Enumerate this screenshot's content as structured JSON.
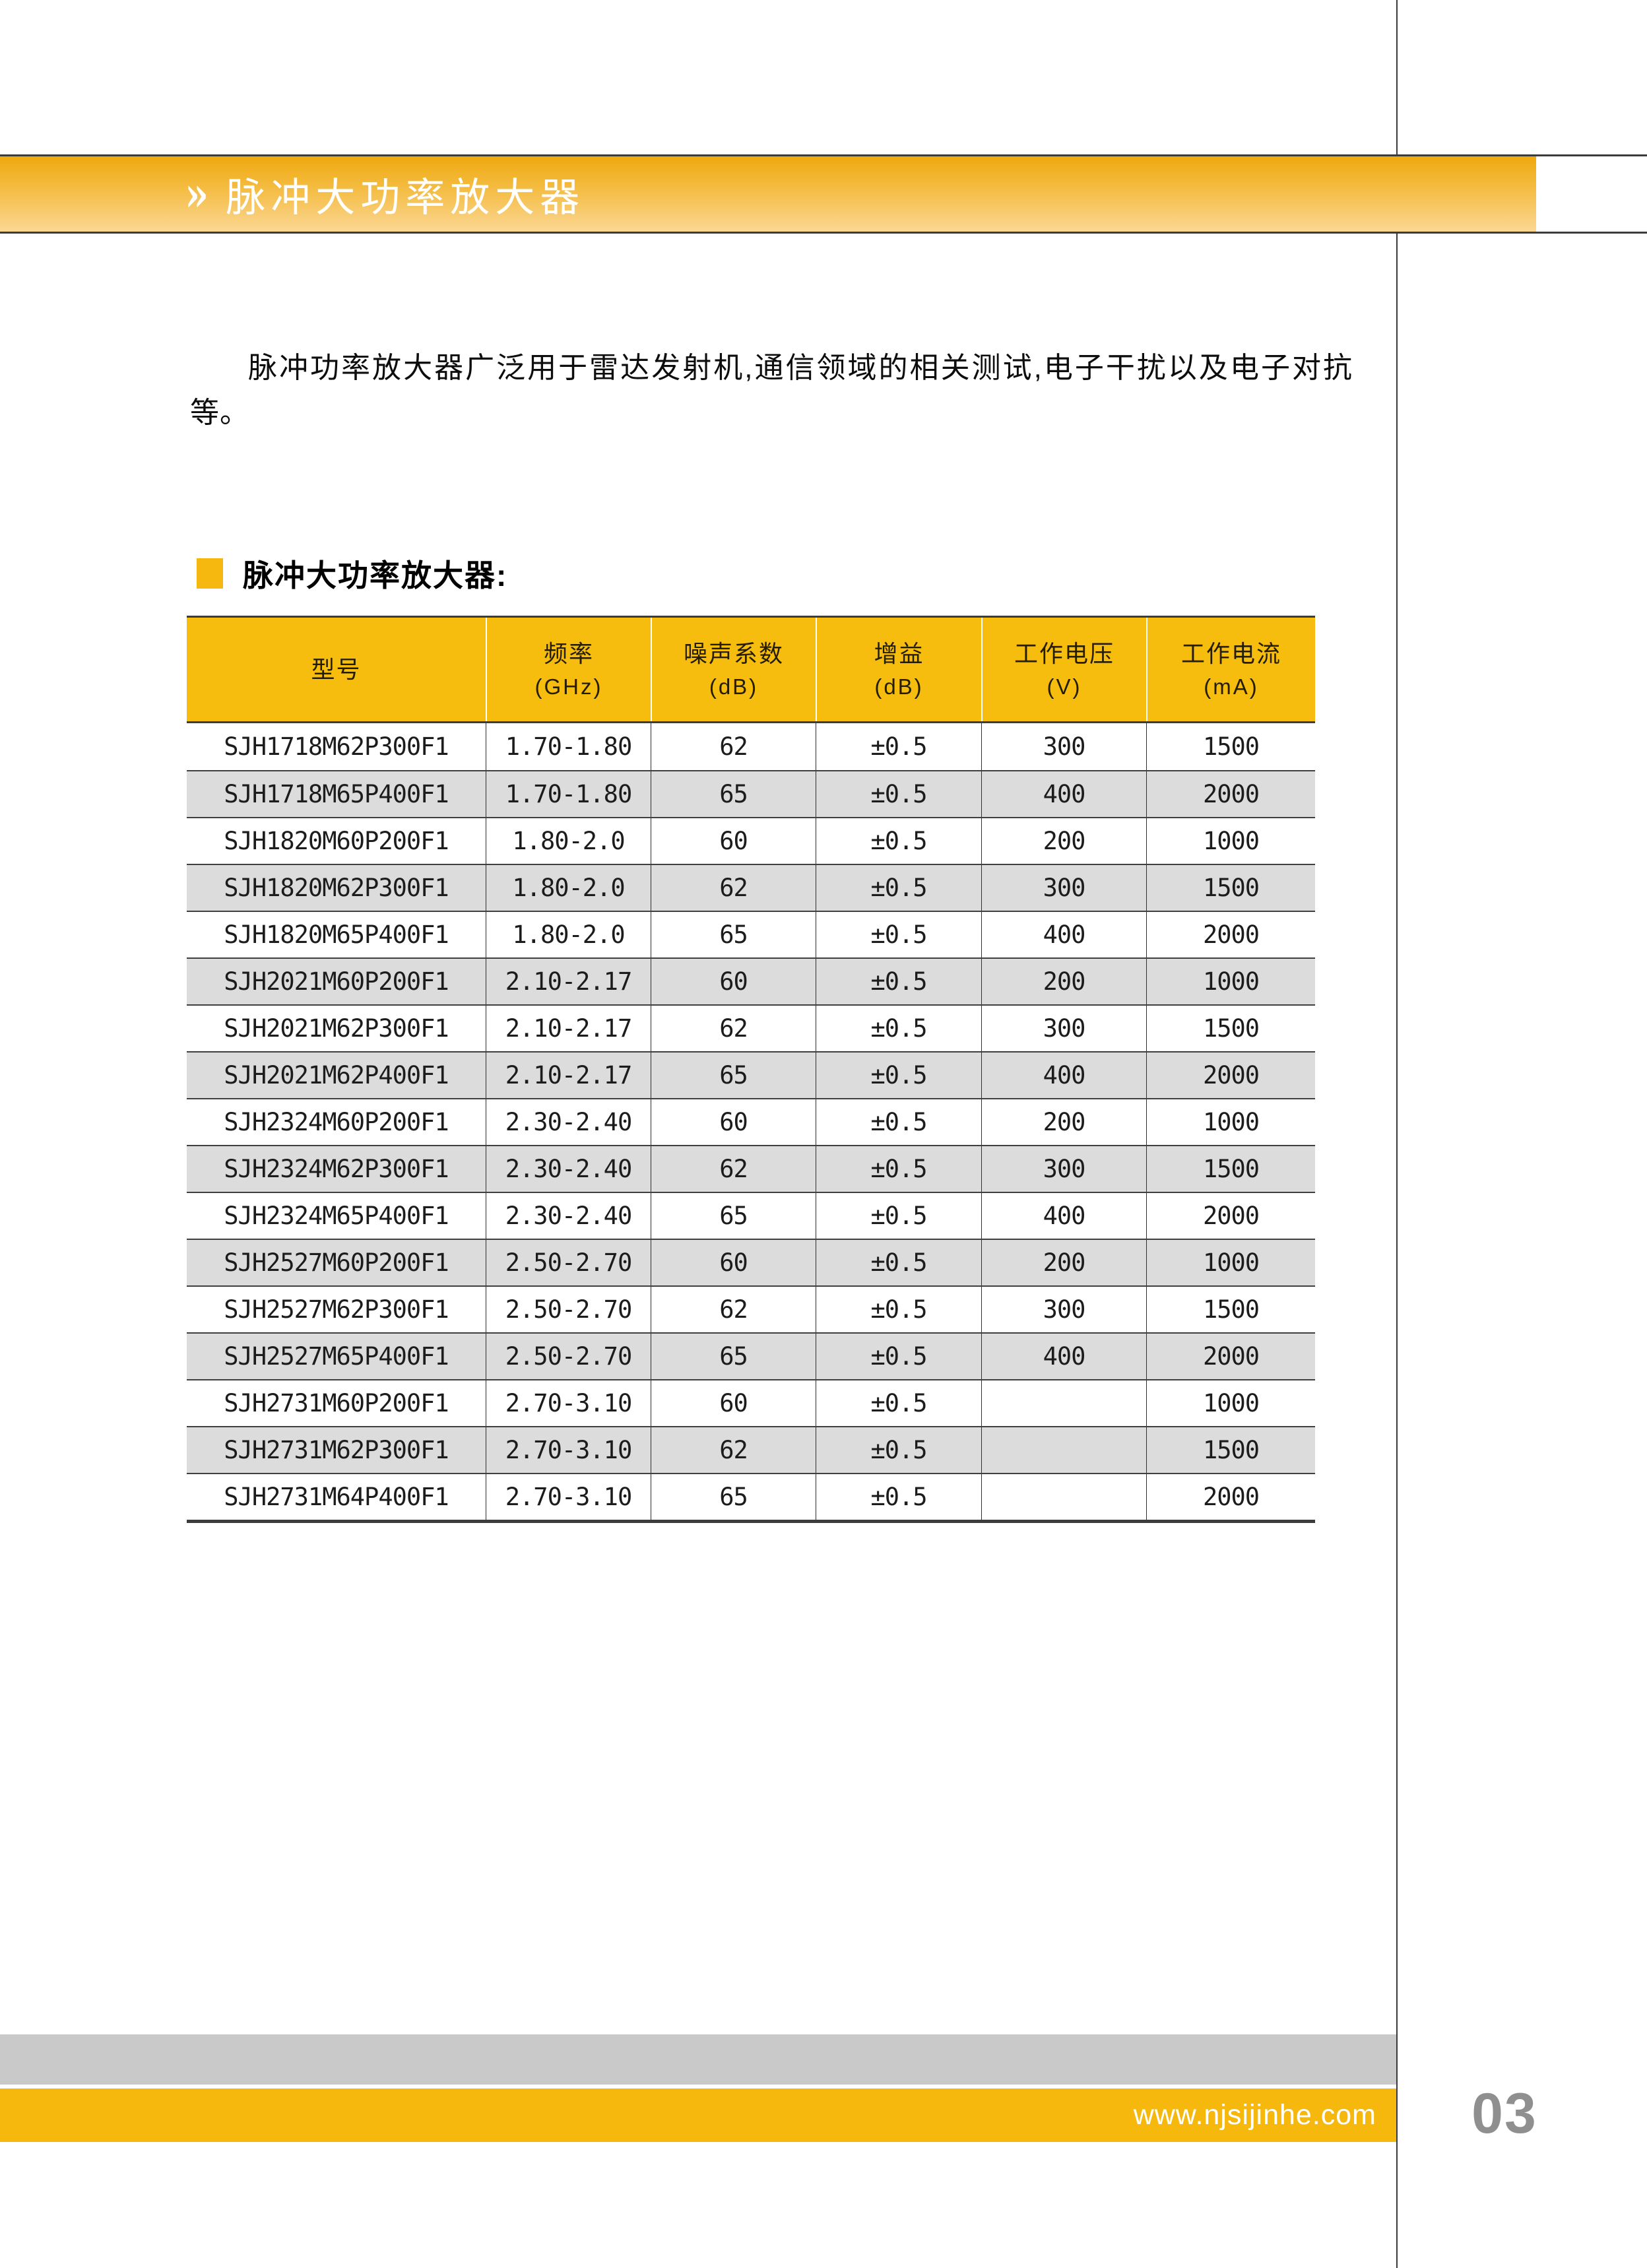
{
  "banner": {
    "chevron": "»",
    "title": "脉冲大功率放大器"
  },
  "intro": "脉冲功率放大器广泛用于雷达发射机,通信领域的相关测试,电子干扰以及电子对抗等。",
  "section": {
    "title": "脉冲大功率放大器:"
  },
  "table": {
    "columns": [
      {
        "label": "型号",
        "unit": ""
      },
      {
        "label": "频率",
        "unit": "(GHz)"
      },
      {
        "label": "噪声系数",
        "unit": "(dB)"
      },
      {
        "label": "增益",
        "unit": "(dB)"
      },
      {
        "label": "工作电压",
        "unit": "(V)"
      },
      {
        "label": "工作电流",
        "unit": "(mA)"
      }
    ],
    "rows": [
      [
        "SJH1718M62P300F1",
        "1.70-1.80",
        "62",
        "±0.5",
        "300",
        "1500"
      ],
      [
        "SJH1718M65P400F1",
        "1.70-1.80",
        "65",
        "±0.5",
        "400",
        "2000"
      ],
      [
        "SJH1820M60P200F1",
        "1.80-2.0",
        "60",
        "±0.5",
        "200",
        "1000"
      ],
      [
        "SJH1820M62P300F1",
        "1.80-2.0",
        "62",
        "±0.5",
        "300",
        "1500"
      ],
      [
        "SJH1820M65P400F1",
        "1.80-2.0",
        "65",
        "±0.5",
        "400",
        "2000"
      ],
      [
        "SJH2021M60P200F1",
        "2.10-2.17",
        "60",
        "±0.5",
        "200",
        "1000"
      ],
      [
        "SJH2021M62P300F1",
        "2.10-2.17",
        "62",
        "±0.5",
        "300",
        "1500"
      ],
      [
        "SJH2021M62P400F1",
        "2.10-2.17",
        "65",
        "±0.5",
        "400",
        "2000"
      ],
      [
        "SJH2324M60P200F1",
        "2.30-2.40",
        "60",
        "±0.5",
        "200",
        "1000"
      ],
      [
        "SJH2324M62P300F1",
        "2.30-2.40",
        "62",
        "±0.5",
        "300",
        "1500"
      ],
      [
        "SJH2324M65P400F1",
        "2.30-2.40",
        "65",
        "±0.5",
        "400",
        "2000"
      ],
      [
        "SJH2527M60P200F1",
        "2.50-2.70",
        "60",
        "±0.5",
        "200",
        "1000"
      ],
      [
        "SJH2527M62P300F1",
        "2.50-2.70",
        "62",
        "±0.5",
        "300",
        "1500"
      ],
      [
        "SJH2527M65P400F1",
        "2.50-2.70",
        "65",
        "±0.5",
        "400",
        "2000"
      ],
      [
        "SJH2731M60P200F1",
        "2.70-3.10",
        "60",
        "±0.5",
        "",
        "1000"
      ],
      [
        "SJH2731M62P300F1",
        "2.70-3.10",
        "62",
        "±0.5",
        "",
        "1500"
      ],
      [
        "SJH2731M64P400F1",
        "2.70-3.10",
        "65",
        "±0.5",
        "",
        "2000"
      ]
    ]
  },
  "footer": {
    "url": "www.njsijinhe.com",
    "page_number": "03"
  },
  "colors": {
    "accent_yellow": "#f6bb0e",
    "banner_gradient_top": "#efa90e",
    "banner_gradient_bottom": "#fcd794",
    "row_stripe_gray": "#dcdcdc",
    "footer_bar_gray": "#c9c9c9",
    "page_number_gray": "#8f8f8f",
    "divider_dark": "#3a3a3a",
    "header_text": "#241d00"
  }
}
